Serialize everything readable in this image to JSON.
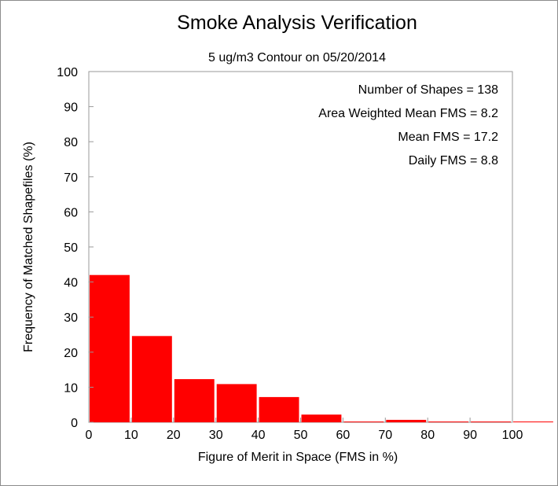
{
  "chart_data": {
    "type": "bar",
    "title": "Smoke Analysis Verification",
    "subtitle": "5 ug/m3 Contour on 05/20/2014",
    "xlabel": "Figure of Merit in Space (FMS in %)",
    "ylabel": "Frequency of Matched Shapefiles (%)",
    "xlim": [
      0,
      110
    ],
    "ylim": [
      0,
      100
    ],
    "xticks": [
      "0",
      "10",
      "20",
      "30",
      "40",
      "50",
      "60",
      "70",
      "80",
      "90",
      "100"
    ],
    "yticks": [
      "0",
      "10",
      "20",
      "30",
      "40",
      "50",
      "60",
      "70",
      "80",
      "90",
      "100"
    ],
    "bins": [
      {
        "start": 0,
        "end": 10,
        "value": 42
      },
      {
        "start": 10,
        "end": 20,
        "value": 24.6
      },
      {
        "start": 20,
        "end": 30,
        "value": 12.3
      },
      {
        "start": 30,
        "end": 40,
        "value": 10.9
      },
      {
        "start": 40,
        "end": 50,
        "value": 7.2
      },
      {
        "start": 50,
        "end": 60,
        "value": 2.2
      },
      {
        "start": 60,
        "end": 70,
        "value": 0
      },
      {
        "start": 70,
        "end": 80,
        "value": 0.7
      },
      {
        "start": 80,
        "end": 90,
        "value": 0
      },
      {
        "start": 90,
        "end": 100,
        "value": 0
      },
      {
        "start": 100,
        "end": 110,
        "value": 0
      }
    ],
    "bar_color": "#ff0000",
    "grid": false,
    "annotations": [
      "Number of Shapes = 138",
      "Area Weighted Mean FMS = 8.2",
      "Mean FMS = 17.2",
      "Daily FMS = 8.8"
    ]
  }
}
